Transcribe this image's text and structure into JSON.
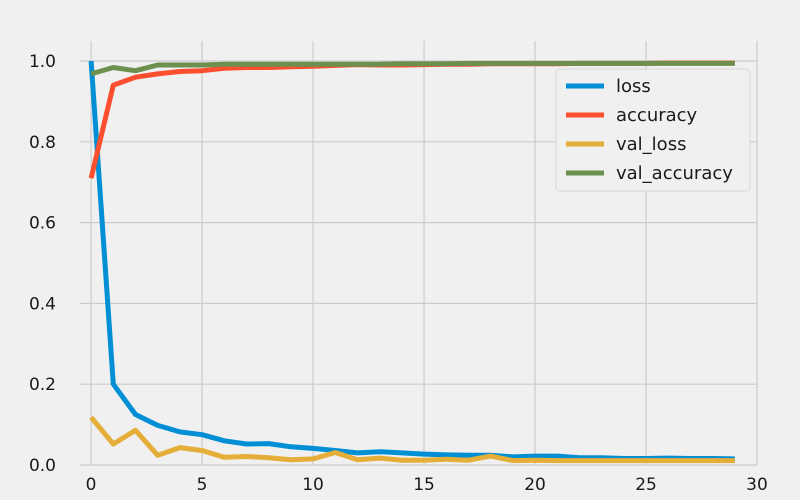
{
  "chart_data": {
    "type": "line",
    "title": "",
    "xlabel": "",
    "ylabel": "",
    "xlim": [
      -0.5,
      30
    ],
    "ylim": [
      0,
      1.0
    ],
    "x_ticks": [
      0,
      5,
      10,
      15,
      20,
      25,
      30
    ],
    "y_ticks": [
      0.0,
      0.2,
      0.4,
      0.6,
      0.8,
      1.0
    ],
    "x_tick_labels": [
      "0",
      "5",
      "10",
      "15",
      "20",
      "25",
      "30"
    ],
    "y_tick_labels": [
      "0.0",
      "0.2",
      "0.4",
      "0.6",
      "0.8",
      "1.0"
    ],
    "grid": true,
    "legend_position": "top-right",
    "x": [
      0,
      1,
      2,
      3,
      4,
      5,
      6,
      7,
      8,
      9,
      10,
      11,
      12,
      13,
      14,
      15,
      16,
      17,
      18,
      19,
      20,
      21,
      22,
      23,
      24,
      25,
      26,
      27,
      28,
      29
    ],
    "series": [
      {
        "name": "loss",
        "color": "#008fd5",
        "values": [
          1.0,
          0.2,
          0.125,
          0.098,
          0.082,
          0.075,
          0.06,
          0.052,
          0.053,
          0.045,
          0.041,
          0.036,
          0.03,
          0.033,
          0.03,
          0.027,
          0.025,
          0.024,
          0.024,
          0.02,
          0.022,
          0.022,
          0.018,
          0.018,
          0.016,
          0.016,
          0.017,
          0.016,
          0.016,
          0.015
        ]
      },
      {
        "name": "accuracy",
        "color": "#fc4f30",
        "values": [
          0.71,
          0.94,
          0.96,
          0.968,
          0.974,
          0.976,
          0.982,
          0.984,
          0.984,
          0.986,
          0.987,
          0.989,
          0.991,
          0.99,
          0.99,
          0.991,
          0.992,
          0.992,
          0.993,
          0.993,
          0.993,
          0.993,
          0.994,
          0.994,
          0.994,
          0.994,
          0.995,
          0.995,
          0.995,
          0.995
        ]
      },
      {
        "name": "val_loss",
        "color": "#e5ae38",
        "values": [
          0.118,
          0.052,
          0.086,
          0.024,
          0.043,
          0.036,
          0.019,
          0.021,
          0.018,
          0.013,
          0.015,
          0.031,
          0.013,
          0.017,
          0.012,
          0.012,
          0.014,
          0.012,
          0.022,
          0.011,
          0.012,
          0.011,
          0.011,
          0.011,
          0.011,
          0.011,
          0.011,
          0.011,
          0.011,
          0.011
        ]
      },
      {
        "name": "val_accuracy",
        "color": "#6d904f",
        "values": [
          0.968,
          0.984,
          0.976,
          0.99,
          0.99,
          0.99,
          0.992,
          0.992,
          0.992,
          0.992,
          0.992,
          0.992,
          0.992,
          0.992,
          0.993,
          0.993,
          0.993,
          0.994,
          0.994,
          0.994,
          0.994,
          0.994,
          0.994,
          0.994,
          0.994,
          0.994,
          0.994,
          0.994,
          0.994,
          0.994
        ]
      }
    ]
  }
}
